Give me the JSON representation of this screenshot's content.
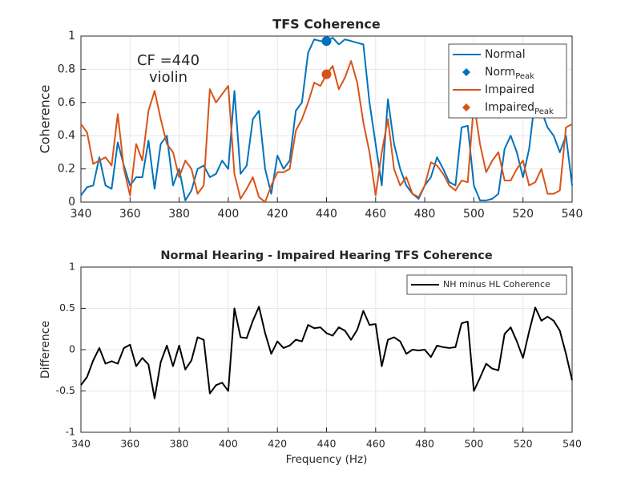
{
  "chart_data": [
    {
      "type": "line",
      "title": "TFS Coherence",
      "ylabel": "Coherence",
      "annotation": [
        "CF =440",
        "violin"
      ],
      "xlim": [
        340,
        540
      ],
      "xticks": [
        340,
        360,
        380,
        400,
        420,
        440,
        460,
        480,
        500,
        520,
        540
      ],
      "ylim": [
        0,
        1
      ],
      "yticks": [
        0,
        0.2,
        0.4,
        0.6,
        0.8,
        1
      ],
      "grid": true,
      "legend": "northeast",
      "x": [
        340,
        342.5,
        345,
        347.5,
        350,
        352.5,
        355,
        357.5,
        360,
        362.5,
        365,
        367.5,
        370,
        372.5,
        375,
        377.5,
        380,
        382.5,
        385,
        387.5,
        390,
        392.5,
        395,
        397.5,
        400,
        402.5,
        405,
        407.5,
        410,
        412.5,
        415,
        417.5,
        420,
        422.5,
        425,
        427.5,
        430,
        432.5,
        435,
        437.5,
        440,
        442.5,
        445,
        447.5,
        450,
        452.5,
        455,
        457.5,
        460,
        462.5,
        465,
        467.5,
        470,
        472.5,
        475,
        477.5,
        480,
        482.5,
        485,
        487.5,
        490,
        492.5,
        495,
        497.5,
        500,
        502.5,
        505,
        507.5,
        510,
        512.5,
        515,
        517.5,
        520,
        522.5,
        525,
        527.5,
        530,
        532.5,
        535,
        537.5,
        540
      ],
      "series": [
        {
          "name": "Normal",
          "style": "line",
          "color": "#0072bd",
          "values": [
            0.04,
            0.09,
            0.1,
            0.27,
            0.1,
            0.08,
            0.36,
            0.22,
            0.1,
            0.15,
            0.15,
            0.37,
            0.08,
            0.35,
            0.4,
            0.1,
            0.2,
            0.01,
            0.07,
            0.2,
            0.22,
            0.15,
            0.17,
            0.25,
            0.2,
            0.67,
            0.17,
            0.22,
            0.5,
            0.55,
            0.2,
            0.05,
            0.28,
            0.2,
            0.25,
            0.55,
            0.6,
            0.9,
            0.98,
            0.97,
            0.97,
            0.99,
            0.95,
            0.98,
            0.97,
            0.96,
            0.95,
            0.6,
            0.35,
            0.1,
            0.62,
            0.35,
            0.2,
            0.1,
            0.05,
            0.02,
            0.1,
            0.15,
            0.27,
            0.2,
            0.12,
            0.1,
            0.45,
            0.46,
            0.1,
            0.01,
            0.01,
            0.02,
            0.05,
            0.32,
            0.4,
            0.3,
            0.15,
            0.32,
            0.63,
            0.55,
            0.45,
            0.4,
            0.3,
            0.4,
            0.1
          ]
        },
        {
          "name": "Norm",
          "subscript": "Peak",
          "style": "marker",
          "color": "#0072bd",
          "x": [
            440
          ],
          "values": [
            0.97
          ]
        },
        {
          "name": "Impaired",
          "style": "line",
          "color": "#d95319",
          "values": [
            0.47,
            0.42,
            0.23,
            0.25,
            0.27,
            0.22,
            0.53,
            0.2,
            0.04,
            0.35,
            0.25,
            0.55,
            0.67,
            0.5,
            0.35,
            0.3,
            0.15,
            0.25,
            0.2,
            0.05,
            0.1,
            0.68,
            0.6,
            0.65,
            0.7,
            0.17,
            0.02,
            0.08,
            0.15,
            0.03,
            0.0,
            0.1,
            0.18,
            0.18,
            0.2,
            0.43,
            0.5,
            0.6,
            0.72,
            0.7,
            0.77,
            0.82,
            0.68,
            0.75,
            0.85,
            0.72,
            0.48,
            0.3,
            0.04,
            0.3,
            0.5,
            0.2,
            0.1,
            0.15,
            0.05,
            0.03,
            0.1,
            0.24,
            0.22,
            0.17,
            0.1,
            0.07,
            0.13,
            0.12,
            0.6,
            0.35,
            0.18,
            0.25,
            0.3,
            0.13,
            0.13,
            0.2,
            0.25,
            0.1,
            0.12,
            0.2,
            0.05,
            0.05,
            0.07,
            0.45,
            0.47
          ]
        },
        {
          "name": "Impaired",
          "subscript": "Peak",
          "style": "marker",
          "color": "#d95319",
          "x": [
            440
          ],
          "values": [
            0.77
          ]
        }
      ]
    },
    {
      "type": "line",
      "title": "Normal Hearing - Impaired Hearing TFS Coherence",
      "xlabel": "Frequency (Hz)",
      "ylabel": "Difference",
      "xlim": [
        340,
        540
      ],
      "xticks": [
        340,
        360,
        380,
        400,
        420,
        440,
        460,
        480,
        500,
        520,
        540
      ],
      "ylim": [
        -1,
        1
      ],
      "yticks": [
        -1,
        -0.5,
        0,
        0.5,
        1
      ],
      "grid": true,
      "legend": "northeast",
      "x": [
        340,
        342.5,
        345,
        347.5,
        350,
        352.5,
        355,
        357.5,
        360,
        362.5,
        365,
        367.5,
        370,
        372.5,
        375,
        377.5,
        380,
        382.5,
        385,
        387.5,
        390,
        392.5,
        395,
        397.5,
        400,
        402.5,
        405,
        407.5,
        410,
        412.5,
        415,
        417.5,
        420,
        422.5,
        425,
        427.5,
        430,
        432.5,
        435,
        437.5,
        440,
        442.5,
        445,
        447.5,
        450,
        452.5,
        455,
        457.5,
        460,
        462.5,
        465,
        467.5,
        470,
        472.5,
        475,
        477.5,
        480,
        482.5,
        485,
        487.5,
        490,
        492.5,
        495,
        497.5,
        500,
        502.5,
        505,
        507.5,
        510,
        512.5,
        515,
        517.5,
        520,
        522.5,
        525,
        527.5,
        530,
        532.5,
        535,
        537.5,
        540
      ],
      "series": [
        {
          "name": "NH minus HL Coherence",
          "style": "line",
          "color": "#000000",
          "values": [
            -0.43,
            -0.33,
            -0.13,
            0.02,
            -0.17,
            -0.14,
            -0.17,
            0.02,
            0.06,
            -0.2,
            -0.1,
            -0.18,
            -0.59,
            -0.15,
            0.05,
            -0.2,
            0.05,
            -0.24,
            -0.13,
            0.15,
            0.12,
            -0.53,
            -0.43,
            -0.4,
            -0.5,
            0.5,
            0.15,
            0.14,
            0.35,
            0.52,
            0.2,
            -0.05,
            0.1,
            0.02,
            0.05,
            0.12,
            0.1,
            0.3,
            0.26,
            0.27,
            0.2,
            0.17,
            0.27,
            0.23,
            0.12,
            0.24,
            0.47,
            0.3,
            0.31,
            -0.2,
            0.12,
            0.15,
            0.1,
            -0.05,
            0,
            -0.01,
            0,
            -0.09,
            0.05,
            0.03,
            0.02,
            0.03,
            0.32,
            0.34,
            -0.5,
            -0.34,
            -0.17,
            -0.23,
            -0.25,
            0.19,
            0.27,
            0.1,
            -0.1,
            0.22,
            0.51,
            0.35,
            0.4,
            0.35,
            0.23,
            -0.05,
            -0.37
          ]
        }
      ]
    }
  ]
}
